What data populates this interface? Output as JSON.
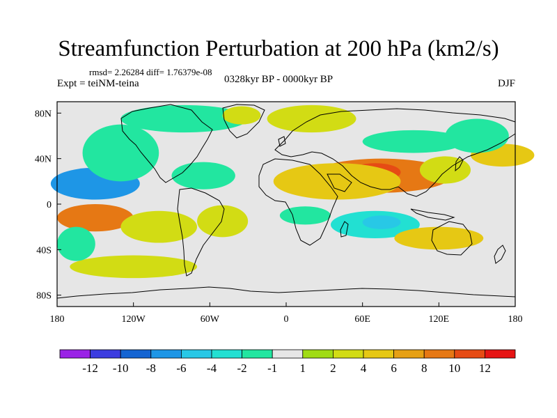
{
  "title": "Streamfunction Perturbation at 200 hPa (km2/s)",
  "stats": "rmsd= 2.26284 diff= 1.76379e-08",
  "experiment": "Expt = teiNM-teina",
  "period": "0328kyr BP - 0000kyr BP",
  "season": "DJF",
  "map": {
    "lon_range": [
      -180,
      180
    ],
    "lat_range": [
      -90,
      90
    ],
    "lon_ticks": [
      {
        "value": -180,
        "label": "180"
      },
      {
        "value": -120,
        "label": "120W"
      },
      {
        "value": -60,
        "label": "60W"
      },
      {
        "value": 0,
        "label": "0"
      },
      {
        "value": 60,
        "label": "60E"
      },
      {
        "value": 120,
        "label": "120E"
      },
      {
        "value": 180,
        "label": "180"
      }
    ],
    "lat_ticks": [
      {
        "value": 80,
        "label": "80N"
      },
      {
        "value": 40,
        "label": "40N"
      },
      {
        "value": 0,
        "label": "0"
      },
      {
        "value": -40,
        "label": "40S"
      },
      {
        "value": -80,
        "label": "80S"
      }
    ],
    "background_color": "#e6e6e6"
  },
  "colorbar": {
    "colors": [
      "#9a22e6",
      "#3c3ce0",
      "#1464d2",
      "#1e96e6",
      "#28c8e6",
      "#22e0d2",
      "#22e6a0",
      "#e6e6e6",
      "#a0dc14",
      "#d2dc14",
      "#e6c814",
      "#e6a014",
      "#e67814",
      "#e64b14",
      "#e61414"
    ],
    "labels": [
      "-12",
      "-10",
      "-8",
      "-6",
      "-4",
      "-2",
      "-1",
      "1",
      "2",
      "4",
      "6",
      "8",
      "10",
      "12"
    ]
  },
  "chart_data": {
    "type": "heatmap",
    "title": "Streamfunction Perturbation at 200 hPa (km2/s)",
    "variable": "streamfunction perturbation",
    "level": "200 hPa",
    "units": "km2/s",
    "contour_levels": [
      -12,
      -10,
      -8,
      -6,
      -4,
      -2,
      -1,
      1,
      2,
      4,
      6,
      8,
      10,
      12
    ],
    "features": [
      {
        "lon": 75,
        "lat": 25,
        "rx": 55,
        "ry": 15,
        "value": 8
      },
      {
        "lon": 70,
        "lat": 28,
        "rx": 20,
        "ry": 8,
        "value": 10
      },
      {
        "lon": 40,
        "lat": 20,
        "rx": 50,
        "ry": 16,
        "value": 4
      },
      {
        "lon": 125,
        "lat": 30,
        "rx": 20,
        "ry": 12,
        "value": 2
      },
      {
        "lon": 70,
        "lat": -18,
        "rx": 35,
        "ry": 12,
        "value": -4
      },
      {
        "lon": 75,
        "lat": -16,
        "rx": 15,
        "ry": 6,
        "value": -6
      },
      {
        "lon": 15,
        "lat": -10,
        "rx": 20,
        "ry": 8,
        "value": -2
      },
      {
        "lon": 120,
        "lat": -30,
        "rx": 35,
        "ry": 10,
        "value": 4
      },
      {
        "lon": 170,
        "lat": 43,
        "rx": 25,
        "ry": 10,
        "value": 4
      },
      {
        "lon": 20,
        "lat": 75,
        "rx": 35,
        "ry": 12,
        "value": 2
      },
      {
        "lon": 100,
        "lat": 55,
        "rx": 40,
        "ry": 10,
        "value": -2
      },
      {
        "lon": -150,
        "lat": 18,
        "rx": 35,
        "ry": 14,
        "value": -8
      },
      {
        "lon": -130,
        "lat": 45,
        "rx": 30,
        "ry": 25,
        "value": -2
      },
      {
        "lon": -80,
        "lat": 75,
        "rx": 50,
        "ry": 12,
        "value": -2
      },
      {
        "lon": -65,
        "lat": 25,
        "rx": 25,
        "ry": 12,
        "value": -2
      },
      {
        "lon": -35,
        "lat": 78,
        "rx": 15,
        "ry": 8,
        "value": 2
      },
      {
        "lon": -150,
        "lat": -12,
        "rx": 30,
        "ry": 12,
        "value": 8
      },
      {
        "lon": -100,
        "lat": -20,
        "rx": 30,
        "ry": 14,
        "value": 2
      },
      {
        "lon": -50,
        "lat": -15,
        "rx": 20,
        "ry": 14,
        "value": 2
      },
      {
        "lon": -120,
        "lat": -55,
        "rx": 50,
        "ry": 10,
        "value": 2
      },
      {
        "lon": 150,
        "lat": 60,
        "rx": 25,
        "ry": 15,
        "value": -2
      },
      {
        "lon": -165,
        "lat": -35,
        "rx": 15,
        "ry": 15,
        "value": -2
      }
    ]
  }
}
